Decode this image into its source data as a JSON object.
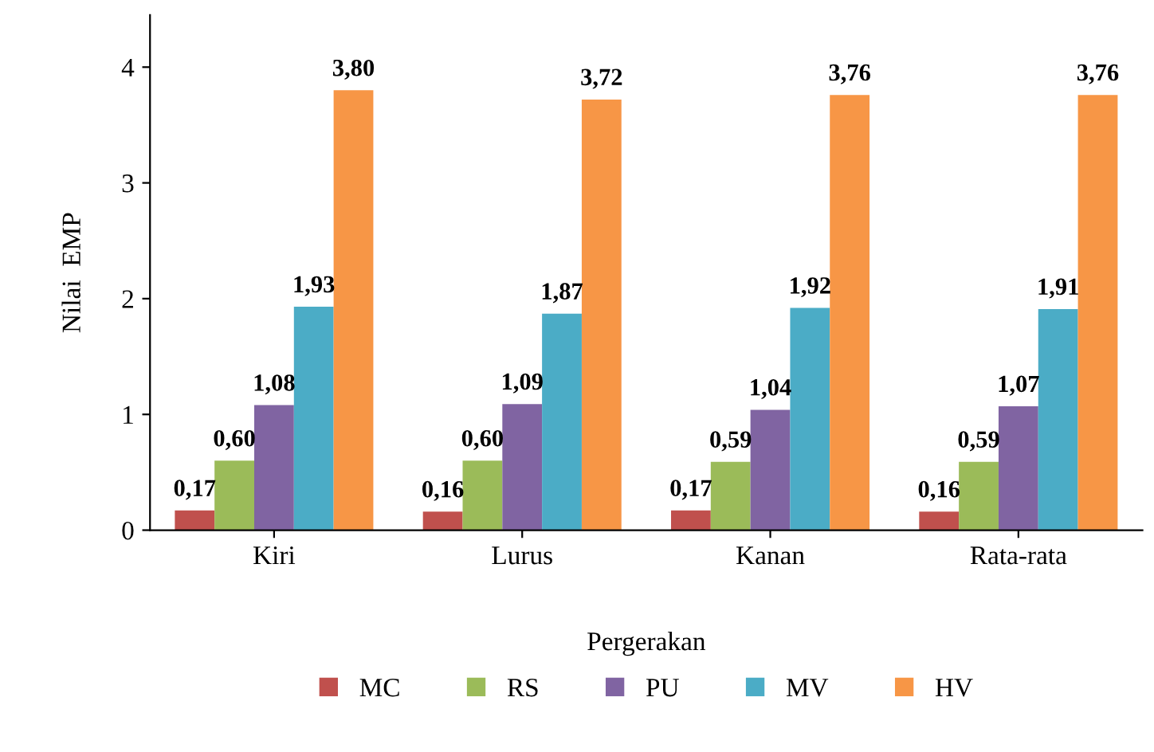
{
  "chart_data": {
    "type": "bar",
    "xlabel": "Pergerakan",
    "ylabel": "Nilai  EMP",
    "categories": [
      "Kiri",
      "Lurus",
      "Kanan",
      "Rata-rata"
    ],
    "series": [
      {
        "name": "MC",
        "color": "#c0504d",
        "values": [
          0.17,
          0.16,
          0.17,
          0.16
        ],
        "value_labels": [
          "0,17",
          "0,16",
          "0,17",
          "0,16"
        ]
      },
      {
        "name": "RS",
        "color": "#9bbb59",
        "values": [
          0.6,
          0.6,
          0.59,
          0.59
        ],
        "value_labels": [
          "0,60",
          "0,60",
          "0,59",
          "0,59"
        ]
      },
      {
        "name": "PU",
        "color": "#8064a2",
        "values": [
          1.08,
          1.09,
          1.04,
          1.07
        ],
        "value_labels": [
          "1,08",
          "1,09",
          "1,04",
          "1,07"
        ]
      },
      {
        "name": "MV",
        "color": "#4bacc6",
        "values": [
          1.93,
          1.87,
          1.92,
          1.91
        ],
        "value_labels": [
          "1,93",
          "1,87",
          "1,92",
          "1,91"
        ]
      },
      {
        "name": "HV",
        "color": "#f79646",
        "values": [
          3.8,
          3.72,
          3.76,
          3.76
        ],
        "value_labels": [
          "3,80",
          "3,72",
          "3,76",
          "3,76"
        ]
      }
    ],
    "ylim": [
      0,
      4.45
    ],
    "yticks": [
      0,
      1,
      2,
      3,
      4
    ],
    "grid": false,
    "legend": "bottom"
  }
}
